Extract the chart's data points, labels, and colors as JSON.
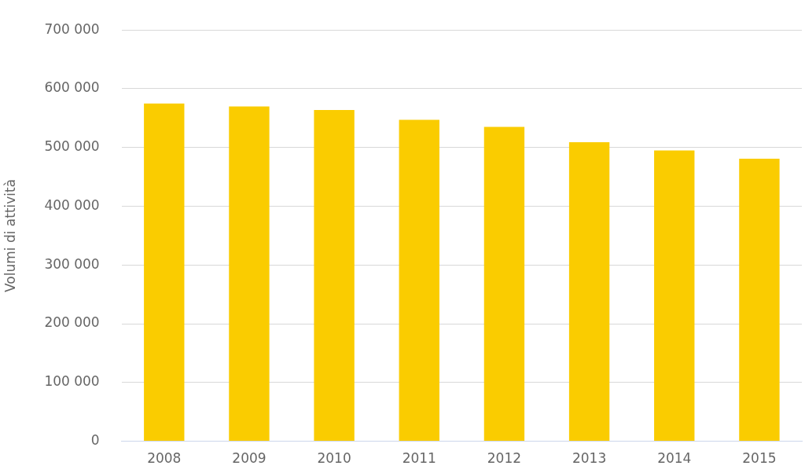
{
  "chart_data": {
    "type": "bar",
    "ylabel": "Volumi di attività",
    "categories": [
      "2008",
      "2009",
      "2010",
      "2011",
      "2012",
      "2013",
      "2014",
      "2015"
    ],
    "values": [
      575000,
      570000,
      564000,
      547000,
      535000,
      509000,
      495000,
      481000
    ],
    "color": "#facc00",
    "ylim": [
      0,
      700000
    ],
    "yticks": [
      {
        "value": 0,
        "label": "0"
      },
      {
        "value": 100000,
        "label": "100 000"
      },
      {
        "value": 200000,
        "label": "200 000"
      },
      {
        "value": 300000,
        "label": "300 000"
      },
      {
        "value": 400000,
        "label": "400 000"
      },
      {
        "value": 500000,
        "label": "500 000"
      },
      {
        "value": 600000,
        "label": "600 000"
      },
      {
        "value": 700000,
        "label": "700 000"
      }
    ],
    "grid": "y",
    "legend": false
  }
}
